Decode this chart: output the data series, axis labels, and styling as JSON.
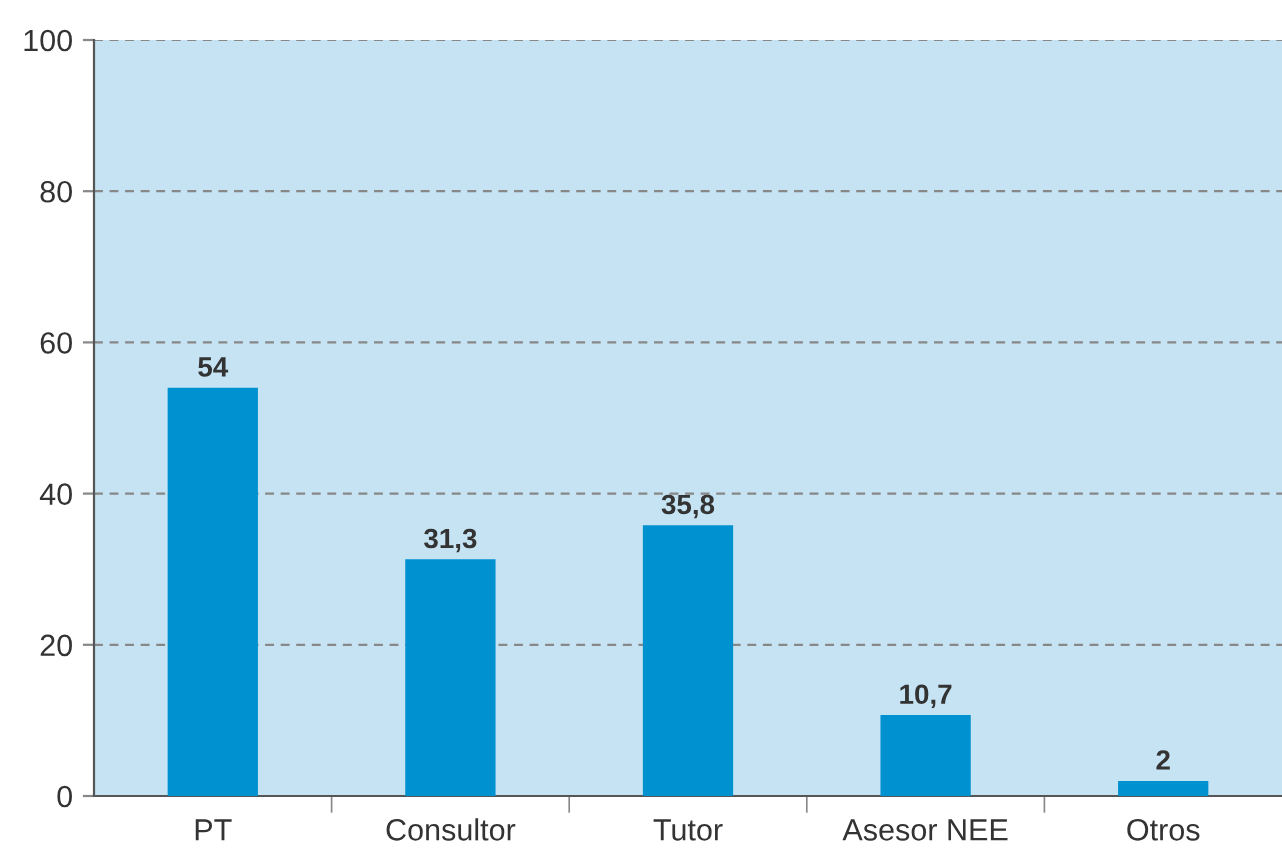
{
  "chart_data": {
    "type": "bar",
    "categories": [
      "PT",
      "Consultor",
      "Tutor",
      "Asesor NEE",
      "Otros"
    ],
    "values": [
      54,
      31.3,
      35.8,
      10.7,
      2
    ],
    "value_labels": [
      "54",
      "31,3",
      "35,8",
      "10,7",
      "2"
    ],
    "color": "#0091d0",
    "ylim": [
      0,
      100
    ],
    "yticks": [
      0,
      20,
      40,
      60,
      80,
      100
    ],
    "grid": "y"
  }
}
